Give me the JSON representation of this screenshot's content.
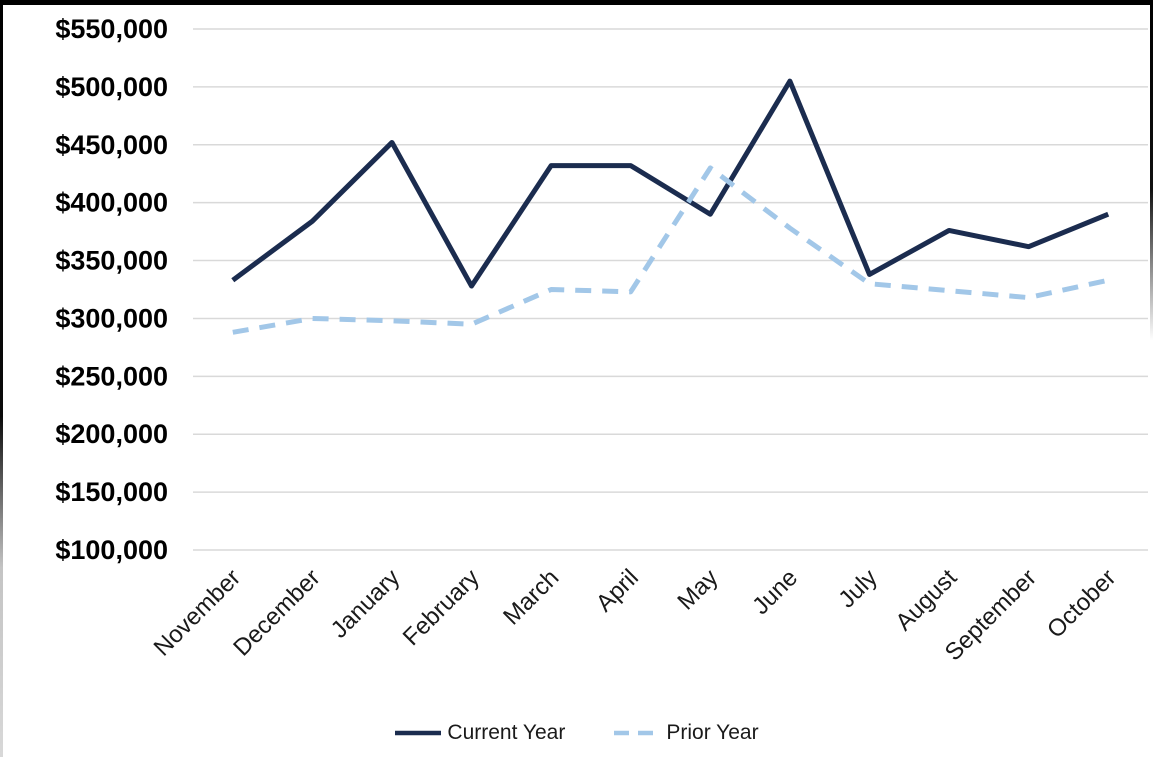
{
  "chart_data": {
    "type": "line",
    "categories": [
      "November",
      "December",
      "January",
      "February",
      "March",
      "April",
      "May",
      "June",
      "July",
      "August",
      "September",
      "October"
    ],
    "series": [
      {
        "name": "Current Year",
        "style": "solid",
        "color": "#1b2c4f",
        "values": [
          333000,
          384000,
          452000,
          328000,
          432000,
          432000,
          390000,
          505000,
          338000,
          376000,
          362000,
          390000
        ]
      },
      {
        "name": "Prior Year",
        "style": "dashed",
        "color": "#a2c7e8",
        "values": [
          288000,
          300000,
          298000,
          295000,
          325000,
          323000,
          430000,
          378000,
          330000,
          324000,
          318000,
          333000
        ]
      }
    ],
    "title": "",
    "xlabel": "",
    "ylabel": "",
    "ylim": [
      100000,
      550000
    ],
    "ytick_step": 50000,
    "ytick_labels": [
      "$550,000",
      "$500,000",
      "$450,000",
      "$400,000",
      "$350,000",
      "$300,000",
      "$250,000",
      "$200,000",
      "$150,000",
      "$100,000"
    ],
    "grid": true,
    "legend_position": "bottom"
  },
  "colors": {
    "gridline": "#d9d9d9",
    "axis_text": "#000000",
    "frame_border": "#000000",
    "background": "#ffffff"
  }
}
